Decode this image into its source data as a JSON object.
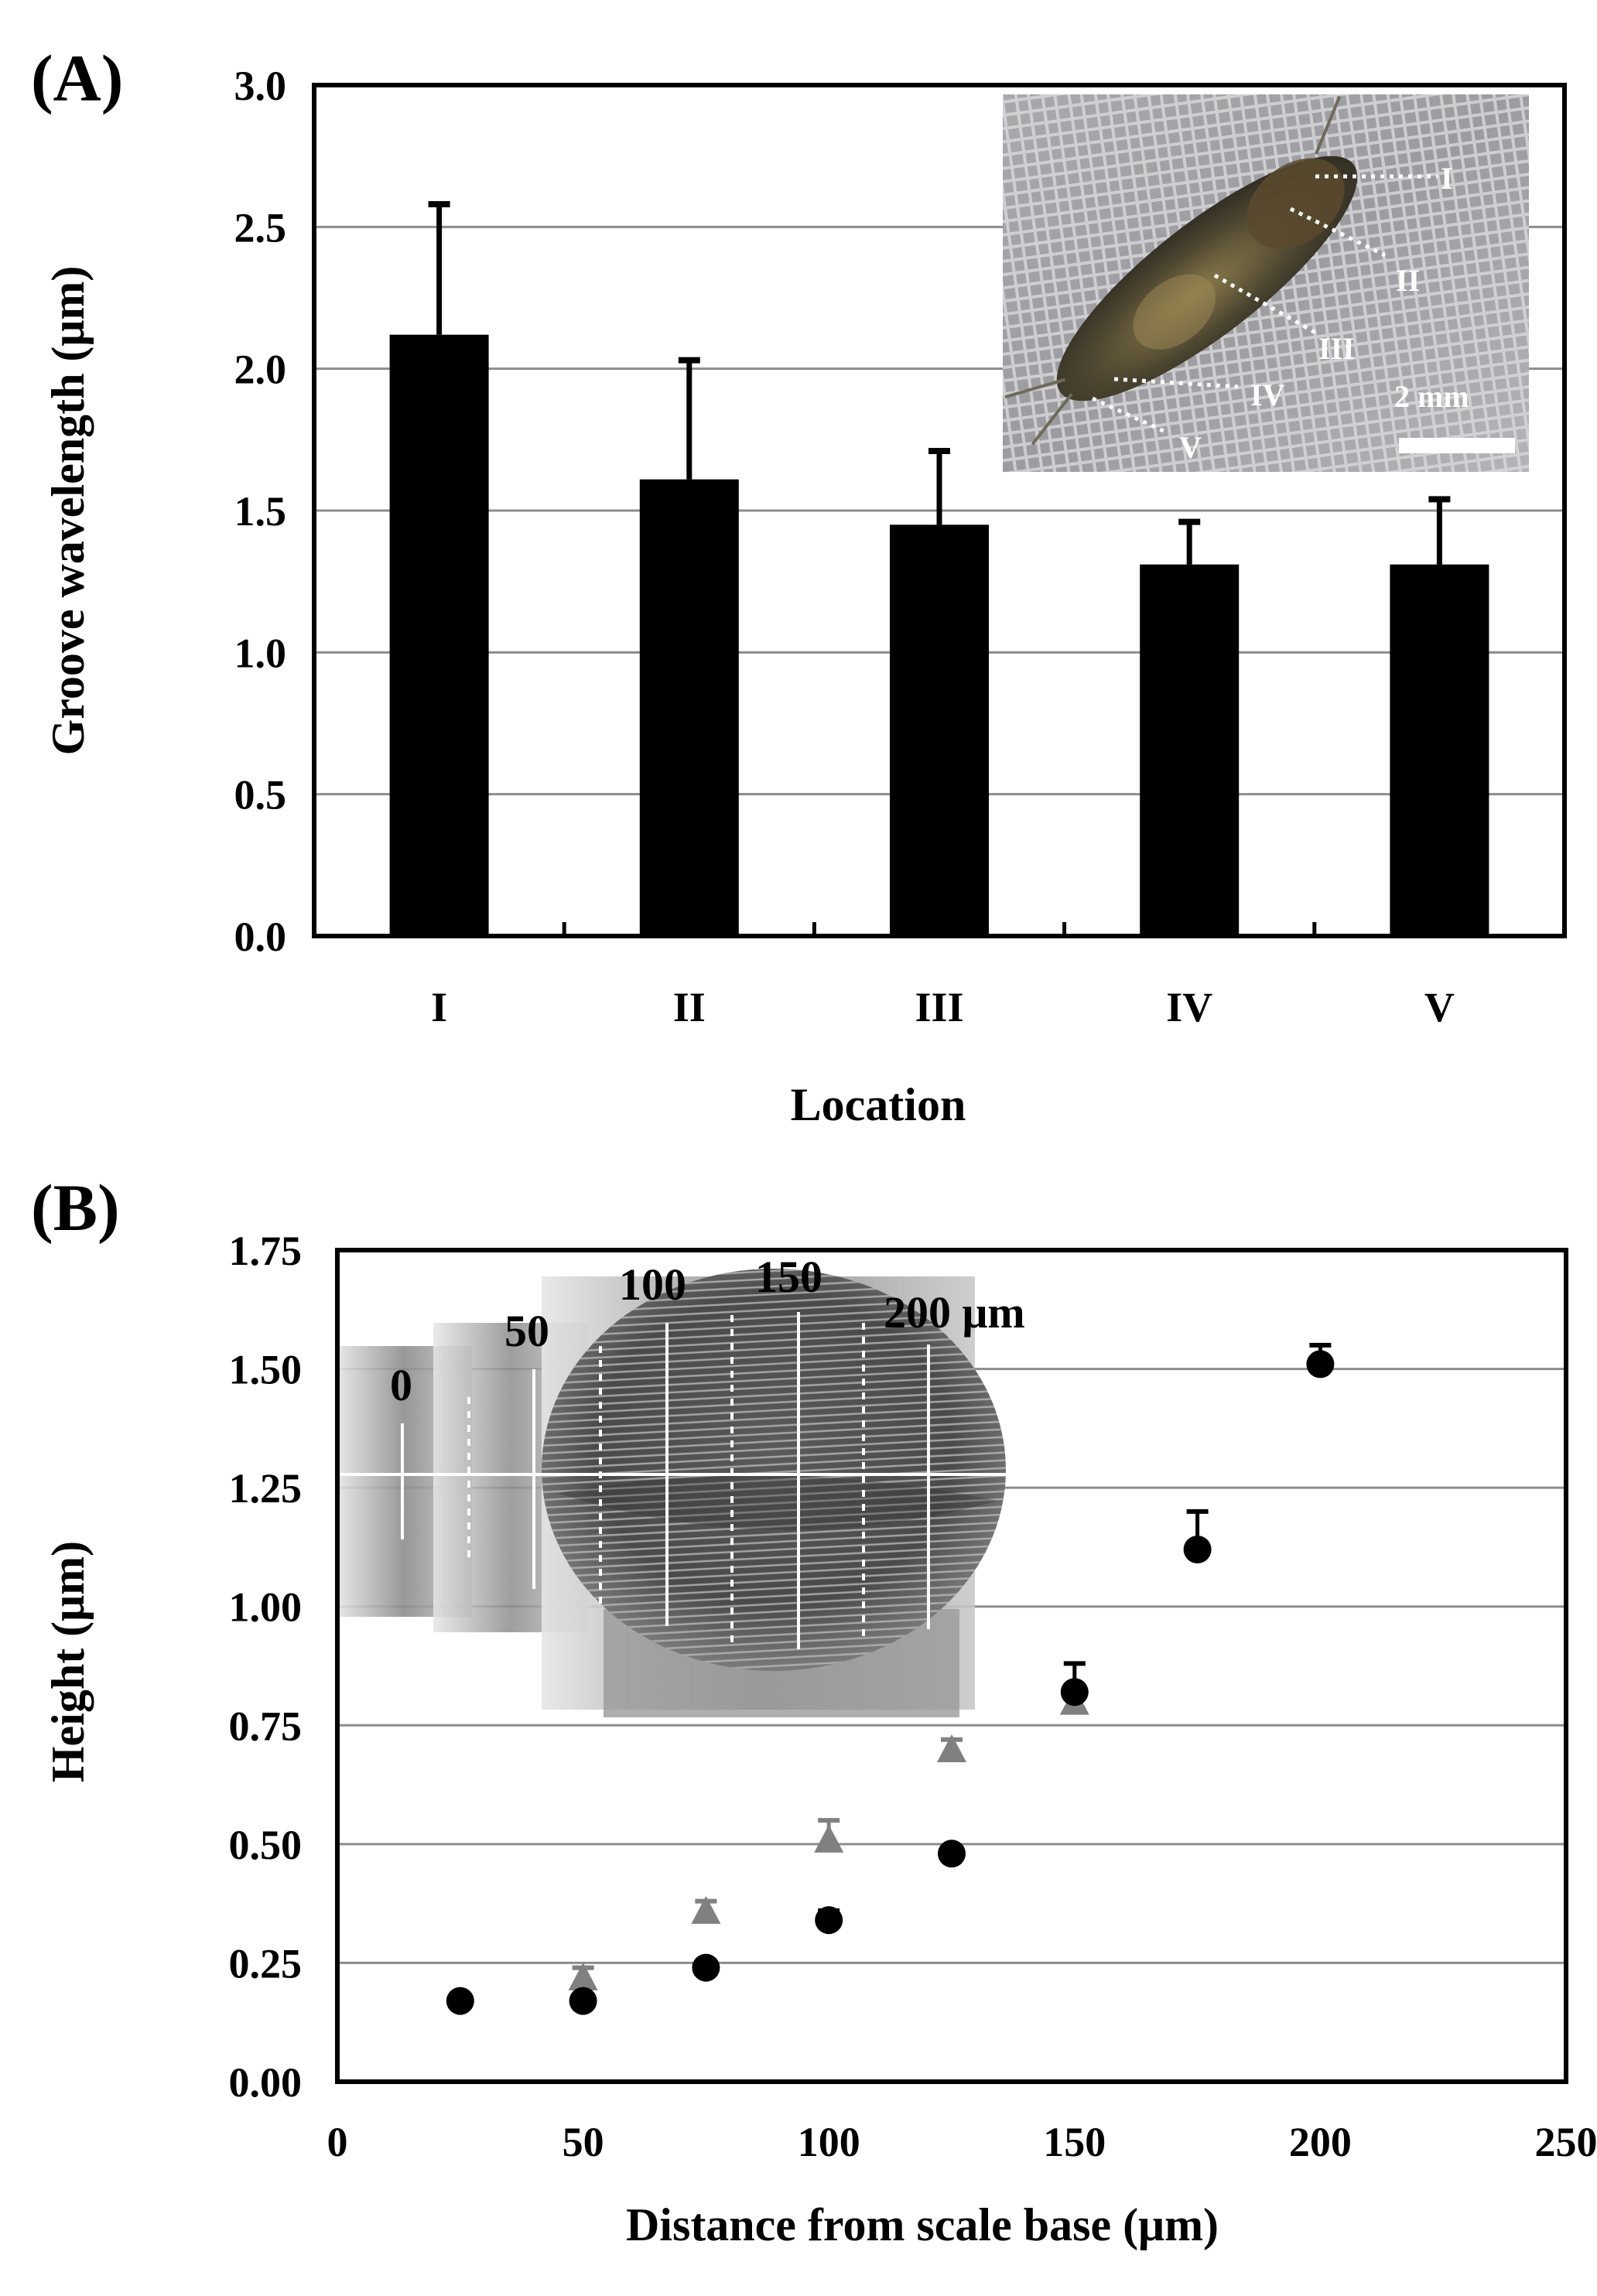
{
  "chart_data": [
    {
      "panel": "(A)",
      "type": "bar",
      "categories": [
        "I",
        "II",
        "III",
        "IV",
        "V"
      ],
      "values": [
        2.12,
        1.61,
        1.45,
        1.31,
        1.31
      ],
      "errors": [
        0.46,
        0.42,
        0.26,
        0.15,
        0.23
      ],
      "xlabel": "Location",
      "ylabel": "Groove wavelength (μm)",
      "ylim": [
        0.0,
        3.0
      ],
      "yticks": [
        "0.0",
        "0.5",
        "1.0",
        "1.5",
        "2.0",
        "2.5",
        "3.0"
      ],
      "grid": true,
      "bar_color": "#000000",
      "inset": {
        "labels": [
          "I",
          "II",
          "III",
          "IV",
          "V"
        ],
        "scale_label": "2 mm"
      }
    },
    {
      "panel": "(B)",
      "type": "scatter",
      "xlabel": "Distance from scale base (μm)",
      "ylabel": "Height (μm)",
      "xlim": [
        0,
        250
      ],
      "ylim": [
        0.0,
        1.75
      ],
      "xticks": [
        "0",
        "50",
        "100",
        "150",
        "200",
        "250"
      ],
      "yticks": [
        "0.00",
        "0.25",
        "0.50",
        "0.75",
        "1.00",
        "1.25",
        "1.50",
        "1.75"
      ],
      "grid": true,
      "series": [
        {
          "marker": "circle",
          "color": "#000000",
          "x": [
            25,
            50,
            75,
            100,
            125,
            150,
            175,
            200
          ],
          "y": [
            0.17,
            0.17,
            0.24,
            0.34,
            0.48,
            0.82,
            1.12,
            1.51
          ],
          "err": [
            0.0,
            0.0,
            0.0,
            0.02,
            0.0,
            0.06,
            0.08,
            0.04
          ]
        },
        {
          "marker": "triangle",
          "color": "#808080",
          "x": [
            50,
            75,
            100,
            125,
            150
          ],
          "y": [
            0.22,
            0.36,
            0.51,
            0.7,
            0.8
          ],
          "err": [
            0.02,
            0.02,
            0.04,
            0.02,
            0.03
          ]
        }
      ],
      "inset": {
        "labels": [
          "0",
          "50",
          "100",
          "150",
          "200 μm"
        ]
      }
    }
  ]
}
